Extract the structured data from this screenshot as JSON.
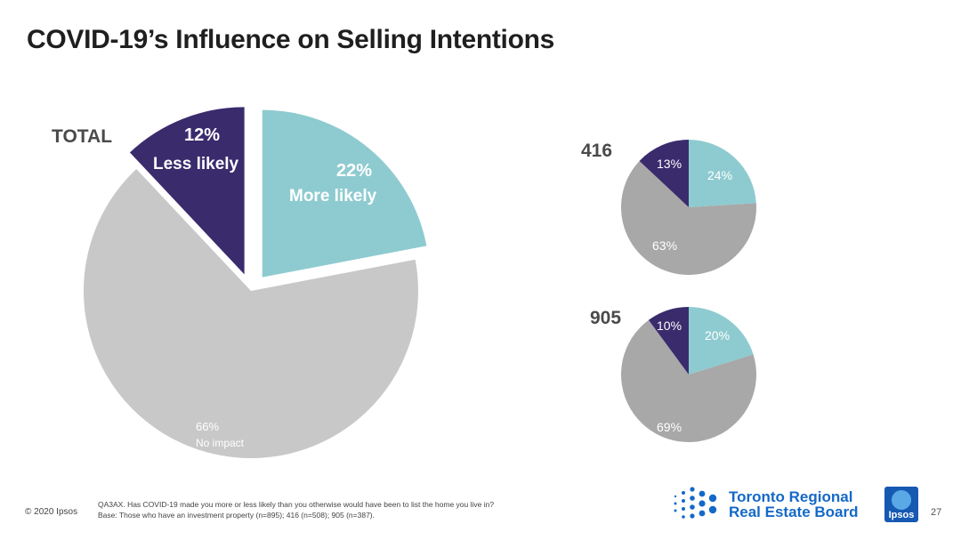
{
  "title": "COVID-19’s Influence on Selling Intentions",
  "chart_data": [
    {
      "type": "pie",
      "group": "TOTAL",
      "slices": [
        {
          "name": "More likely",
          "value": 22,
          "label": "22%",
          "color": "#8ecbd0"
        },
        {
          "name": "No impact",
          "value": 66,
          "label": "66%",
          "color": "#c8c8c8"
        },
        {
          "name": "Less likely",
          "value": 12,
          "label": "12%",
          "color": "#3a2b6d"
        }
      ]
    },
    {
      "type": "pie",
      "group": "416",
      "slices": [
        {
          "value": 24,
          "label": "24%",
          "color": "#8ecbd0"
        },
        {
          "value": 63,
          "label": "63%",
          "color": "#a8a8a8"
        },
        {
          "value": 13,
          "label": "13%",
          "color": "#3a2b6d"
        }
      ]
    },
    {
      "type": "pie",
      "group": "905",
      "slices": [
        {
          "value": 20,
          "label": "20%",
          "color": "#8ecbd0"
        },
        {
          "value": 69,
          "label": "69%",
          "color": "#a8a8a8"
        },
        {
          "value": 10,
          "label": "10%",
          "color": "#3a2b6d"
        }
      ]
    }
  ],
  "footer": {
    "copyright": "© 2020 Ipsos",
    "question": "QA3AX. Has COVID-19 made you more or less likely than you otherwise would have been to list the home you live in?",
    "base": "Base: Those who have an investment property (n=895); 416 (n=508); 905 (n=387).",
    "page_number": "27"
  },
  "logos": {
    "trreb_line1": "Toronto Regional",
    "trreb_line2": "Real Estate Board",
    "ipsos": "Ipsos"
  }
}
